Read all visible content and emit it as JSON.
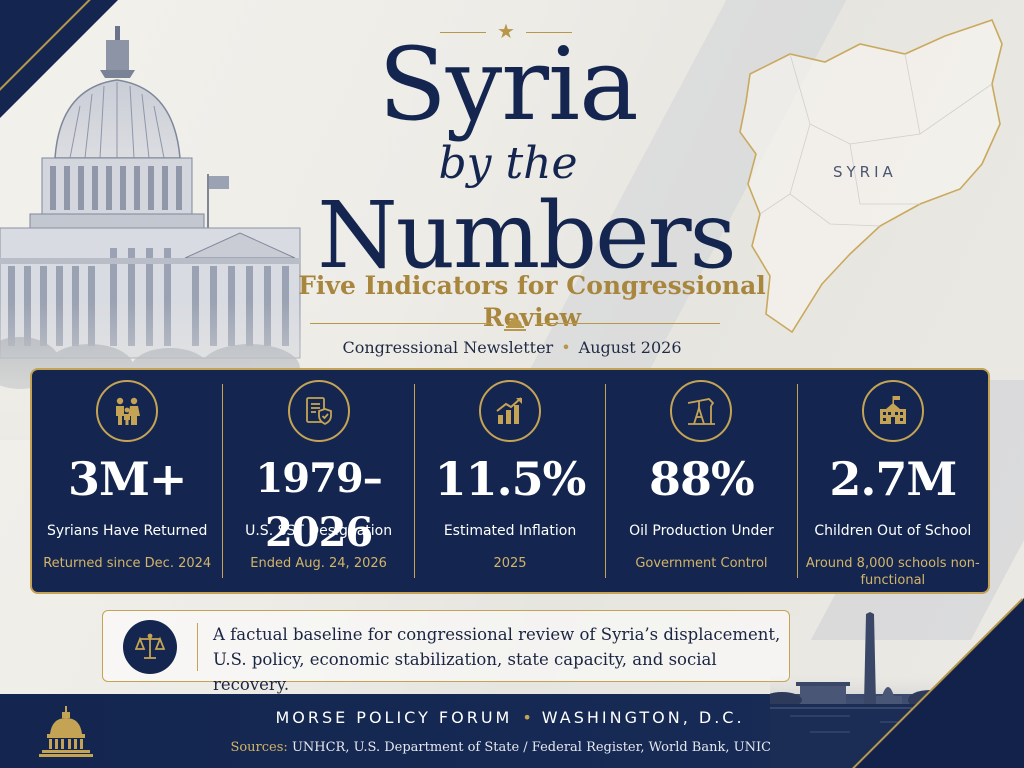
{
  "title": {
    "line1": "Syria",
    "line2": "by the",
    "line3": "Numbers",
    "subtitle": "Five Indicators for Congressional Review"
  },
  "dateline": {
    "publication": "Congressional Newsletter",
    "separator": "•",
    "date": "August 2026"
  },
  "map": {
    "label": "SYRIA"
  },
  "stats": [
    {
      "icon": "family-icon",
      "value": "3M+",
      "label": "Syrians Have Returned",
      "note": "Returned since Dec. 2024"
    },
    {
      "icon": "document-shield-icon",
      "value": "1979–2026",
      "label": "U.S. SST Designation",
      "note": "Ended Aug. 24, 2026"
    },
    {
      "icon": "rising-chart-icon",
      "value": "11.5%",
      "label": "Estimated Inflation",
      "note": "2025"
    },
    {
      "icon": "oil-pump-icon",
      "value": "88%",
      "label": "Oil Production Under",
      "note": "Government Control"
    },
    {
      "icon": "school-icon",
      "value": "2.7M",
      "label": "Children Out of School",
      "note": "Around 8,000 schools non-functional"
    }
  ],
  "summary": {
    "icon": "scales-icon",
    "text": "A factual baseline for congressional review of Syria’s displacement, U.S. policy, economic stabilization, state capacity, and social recovery."
  },
  "footer": {
    "org_name": "MORSE POLICY FORUM",
    "separator": "•",
    "location": "WASHINGTON, D.C.",
    "sources_label": "Sources:",
    "sources": "UNHCR, U.S. Department of State / Federal Register, World Bank, UNICEF"
  },
  "colors": {
    "navy": "#14264f",
    "gold": "#c4a454",
    "paper": "#eceae5"
  }
}
